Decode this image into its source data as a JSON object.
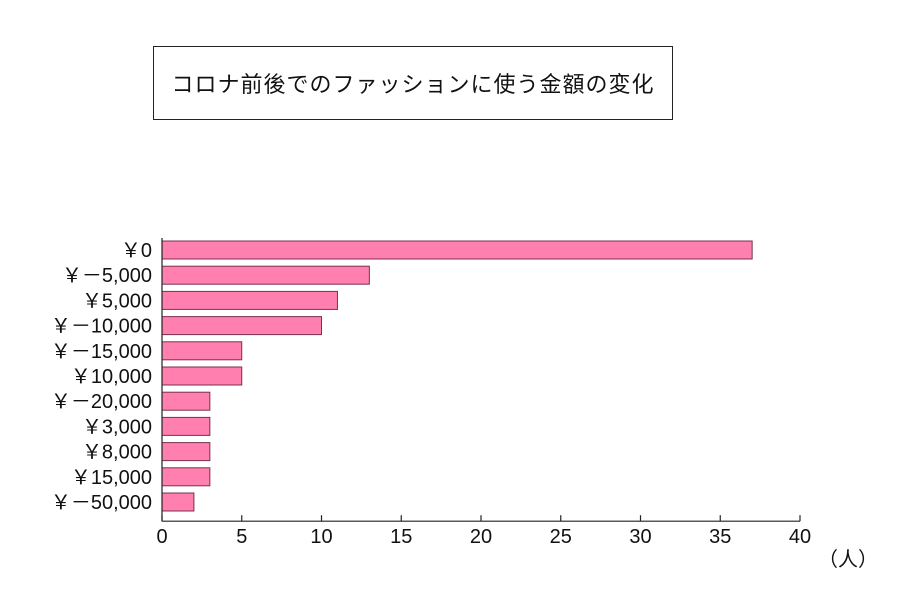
{
  "chart_data": {
    "type": "bar",
    "orientation": "horizontal",
    "title": "コロナ前後でのファッションに使う金額の変化",
    "categories": [
      "￥0",
      "￥－5,000",
      "￥5,000",
      "￥－10,000",
      "￥－15,000",
      "￥10,000",
      "￥－20,000",
      "￥3,000",
      "￥8,000",
      "￥15,000",
      "￥－50,000"
    ],
    "values": [
      37,
      13,
      11,
      10,
      5,
      5,
      3,
      3,
      3,
      3,
      2
    ],
    "xlim": [
      0,
      40
    ],
    "xticks": [
      "0",
      "5",
      "10",
      "15",
      "20",
      "25",
      "30",
      "35",
      "40"
    ],
    "xunit": "（人）",
    "grid": false,
    "bar_color": "#ff7fae",
    "bar_edge_color": "#7a3050"
  }
}
